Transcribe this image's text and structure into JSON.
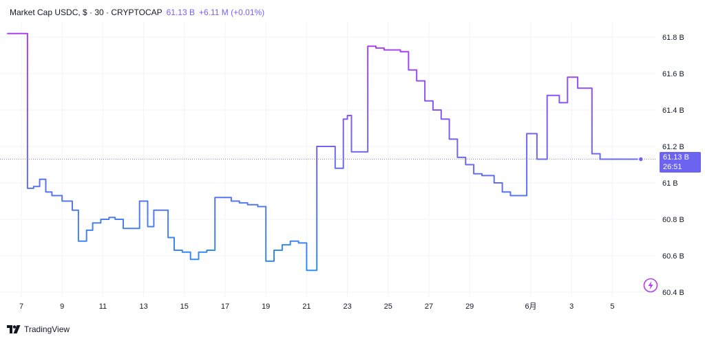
{
  "header": {
    "symbol": "Market Cap USDC, $ · 30 · CRYPTOCAP",
    "last": "61.13 B",
    "change": "+6.11 M (+0.01%)"
  },
  "last_tag": {
    "price": "61.13 B",
    "countdown": "26:51"
  },
  "brand": {
    "name": "TradingView",
    "logo_icon": "tradingview-logo-icon"
  },
  "indicator_icon": "lightning-icon",
  "colors": {
    "line_start": "#2196f3",
    "line_end": "#b03cf2",
    "tag": "#6c63f0",
    "accent": "#7b5cff"
  },
  "chart_data": {
    "type": "line",
    "title": "Market Cap USDC, $ · 30 · CRYPTOCAP",
    "interval": "30",
    "ylabel": "",
    "xlabel": "",
    "ylim": [
      60.37,
      61.97
    ],
    "y_ticks": [
      60.4,
      60.6,
      60.8,
      61.0,
      61.2,
      61.4,
      61.6,
      61.8
    ],
    "y_tick_labels": [
      "60.4 B",
      "60.6 B",
      "60.8 B",
      "61 B",
      "61.2 B",
      "61.4 B",
      "61.6 B",
      "61.8 B"
    ],
    "x_ticks": [
      {
        "label": "7",
        "day": 0
      },
      {
        "label": "9",
        "day": 2
      },
      {
        "label": "11",
        "day": 4
      },
      {
        "label": "13",
        "day": 6
      },
      {
        "label": "15",
        "day": 8
      },
      {
        "label": "17",
        "day": 10
      },
      {
        "label": "19",
        "day": 12
      },
      {
        "label": "21",
        "day": 14
      },
      {
        "label": "23",
        "day": 16
      },
      {
        "label": "25",
        "day": 18
      },
      {
        "label": "27",
        "day": 20
      },
      {
        "label": "29",
        "day": 22
      },
      {
        "label": "6月",
        "day": 25
      },
      {
        "label": "3",
        "day": 27
      },
      {
        "label": "5",
        "day": 29
      }
    ],
    "grid": true,
    "last_value": 61.13,
    "series": [
      {
        "x": [
          -0.7,
          -0.1,
          0.25,
          0.3,
          0.6,
          0.9,
          1.2,
          1.5,
          2.0,
          2.5,
          2.8,
          2.95,
          3.2,
          3.5,
          3.9,
          4.3,
          4.6,
          5.0,
          5.4,
          5.8,
          6.2,
          6.5,
          6.8,
          7.2,
          7.5,
          7.9,
          8.3,
          8.7,
          9.1,
          9.5,
          9.9,
          10.3,
          10.7,
          11.1,
          11.6,
          12.0,
          12.4,
          12.8,
          13.2,
          13.6,
          14.0,
          14.3,
          14.5,
          14.8,
          15.0,
          15.4,
          15.6,
          15.8,
          16.0,
          16.2,
          16.6,
          17.0,
          17.4,
          17.8,
          18.2,
          18.6,
          19.0,
          19.4,
          19.8,
          20.2,
          20.6,
          21.0,
          21.4,
          21.8,
          22.2,
          22.6,
          22.9,
          23.2,
          23.6,
          24.0,
          24.4,
          24.8,
          25.3,
          25.8,
          26.4,
          26.8,
          27.0,
          27.3,
          27.6,
          28.0,
          28.4,
          28.7,
          29.0,
          29.4,
          29.8,
          30.0,
          30.2,
          30.4
        ],
        "y": [
          61.82,
          61.82,
          61.82,
          60.97,
          60.98,
          61.02,
          60.95,
          60.93,
          60.9,
          60.85,
          60.68,
          60.68,
          60.74,
          60.78,
          60.8,
          60.81,
          60.8,
          60.75,
          60.75,
          60.9,
          60.76,
          60.85,
          60.85,
          60.7,
          60.63,
          60.62,
          60.58,
          60.62,
          60.63,
          60.92,
          60.92,
          60.9,
          60.89,
          60.88,
          60.87,
          60.57,
          60.63,
          60.66,
          60.68,
          60.67,
          60.52,
          60.52,
          61.2,
          61.2,
          61.2,
          61.08,
          61.08,
          61.35,
          61.37,
          61.17,
          61.17,
          61.75,
          61.74,
          61.73,
          61.73,
          61.72,
          61.62,
          61.56,
          61.45,
          61.4,
          61.35,
          61.24,
          61.14,
          61.1,
          61.05,
          61.04,
          61.04,
          61.0,
          60.95,
          60.93,
          60.93,
          61.27,
          61.13,
          61.48,
          61.44,
          61.58,
          61.58,
          61.52,
          61.52,
          61.16,
          61.13,
          61.13,
          61.13,
          61.13,
          61.13,
          61.13,
          61.13,
          61.13
        ]
      }
    ]
  }
}
